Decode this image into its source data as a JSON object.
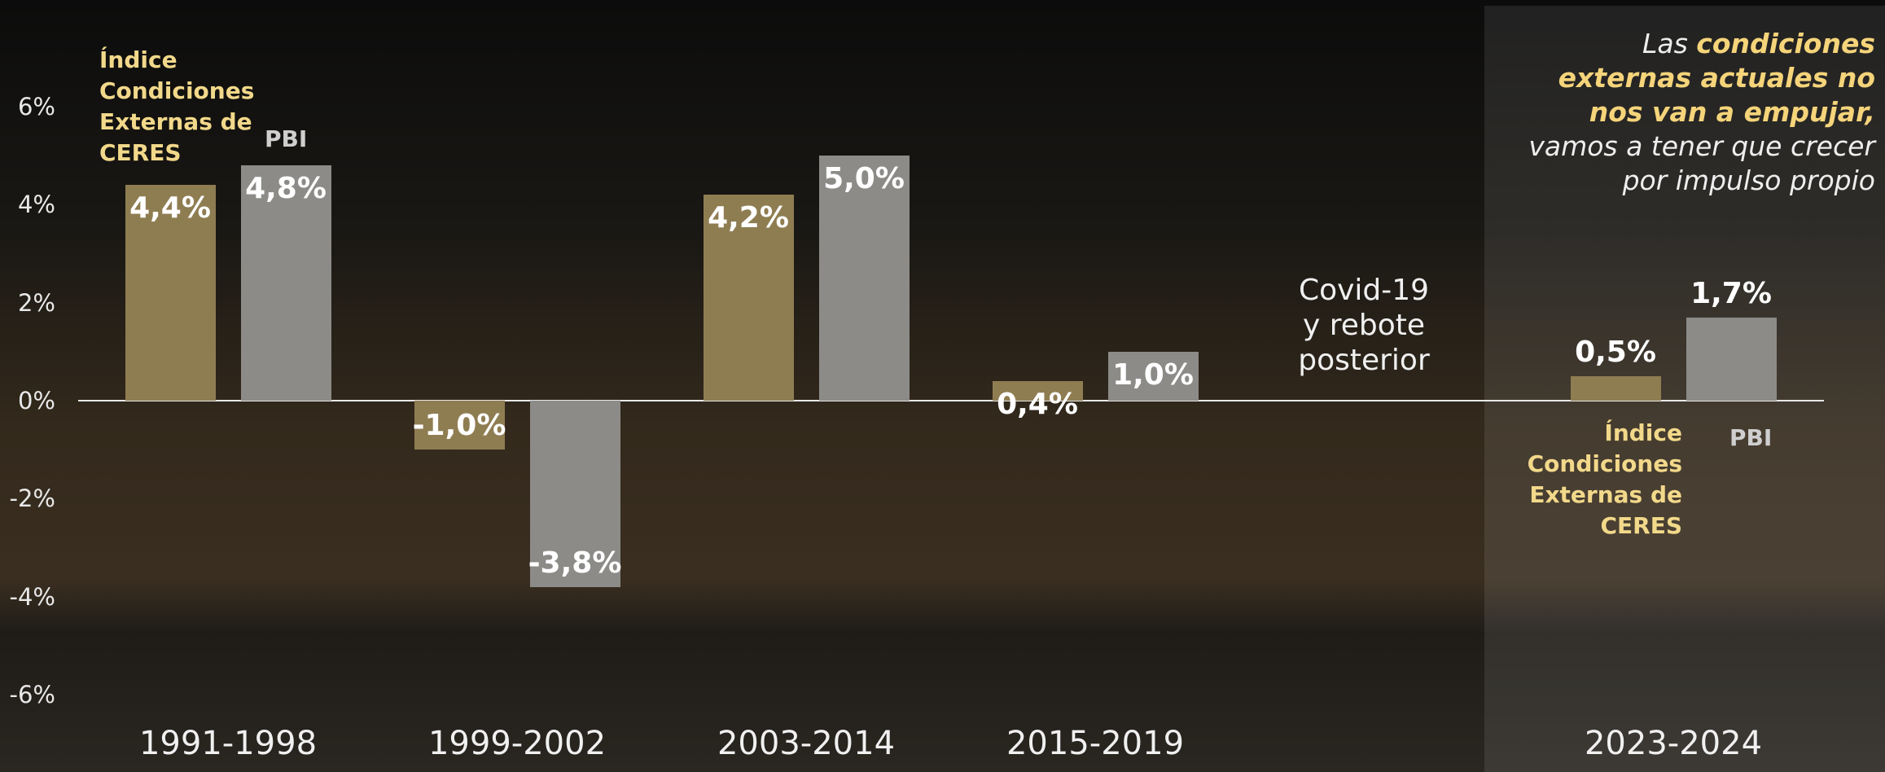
{
  "chart_data": {
    "type": "bar",
    "categories": [
      "1991-1998",
      "1999-2002",
      "2003-2014",
      "2015-2019",
      null,
      "2023-2024"
    ],
    "series": [
      {
        "name": "Índice Condiciones Externas de CERES",
        "color": "#8f7d52",
        "values": [
          4.4,
          -1.0,
          4.2,
          0.4,
          null,
          0.5
        ],
        "value_labels": [
          "4,4%",
          "-1,0%",
          "4,2%",
          "0,4%",
          null,
          "0,5%"
        ]
      },
      {
        "name": "PBI",
        "color": "#8c8b88",
        "values": [
          4.8,
          -3.8,
          5.0,
          1.0,
          null,
          1.7
        ],
        "value_labels": [
          "4,8%",
          "-3,8%",
          "5,0%",
          "1,0%",
          null,
          "1,7%"
        ]
      }
    ],
    "ylim": [
      -6,
      6
    ],
    "yticks": [
      {
        "value": -6,
        "label": "-6%"
      },
      {
        "value": -4,
        "label": "-4%"
      },
      {
        "value": -2,
        "label": "-2%"
      },
      {
        "value": 0,
        "label": "0%"
      },
      {
        "value": 2,
        "label": "2%"
      },
      {
        "value": 4,
        "label": "4%"
      },
      {
        "value": 6,
        "label": "6%"
      }
    ],
    "annotations": [
      "Covid-19",
      "y rebote",
      "posterior"
    ],
    "callout": [
      "Las ",
      "condiciones externas actuales no nos van a empujar,",
      " vamos a tener que crecer por impulso propio"
    ]
  }
}
